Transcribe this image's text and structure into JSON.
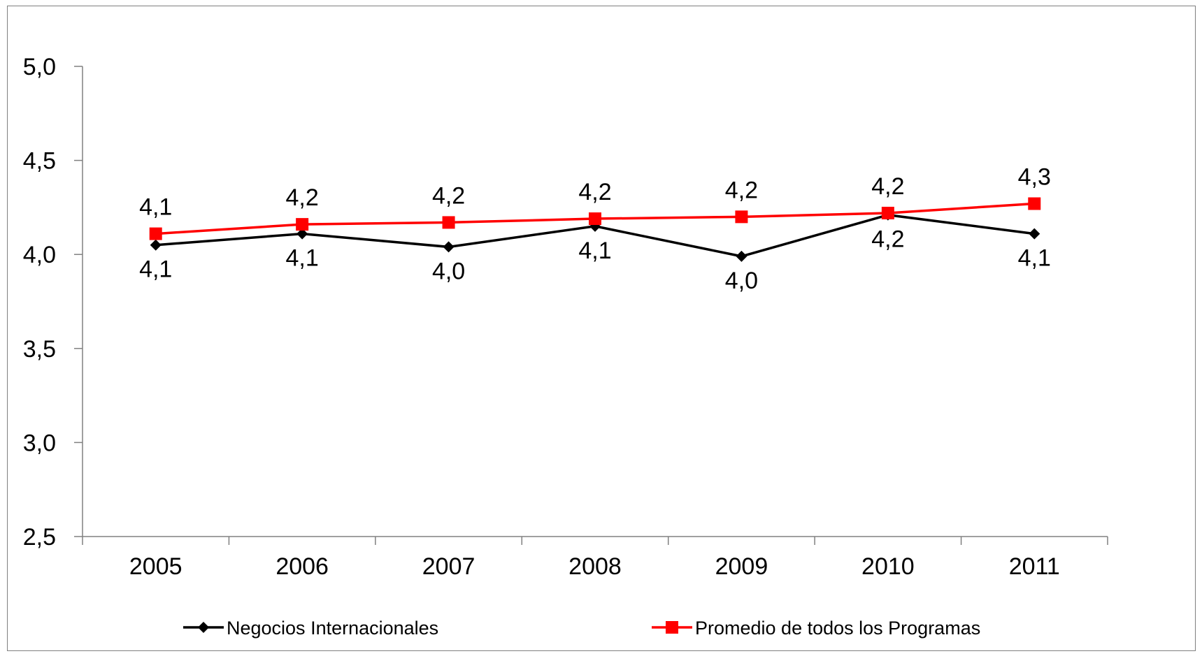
{
  "chart_data": {
    "type": "line",
    "x": [
      "2005",
      "2006",
      "2007",
      "2008",
      "2009",
      "2010",
      "2011"
    ],
    "ylim": [
      2.5,
      5.0
    ],
    "yticks": [
      2.5,
      3.0,
      3.5,
      4.0,
      4.5,
      5.0
    ],
    "ytick_labels": [
      "2,5",
      "3,0",
      "3,5",
      "4,0",
      "4,5",
      "5,0"
    ],
    "grid": false,
    "legend_position": "bottom",
    "series": [
      {
        "name": "Negocios Internacionales",
        "color": "#000000",
        "marker": "diamond",
        "values": [
          4.05,
          4.11,
          4.04,
          4.15,
          3.99,
          4.21,
          4.11
        ],
        "labels": [
          "4,1",
          "4,1",
          "4,0",
          "4,1",
          "4,0",
          "4,2",
          "4,1"
        ],
        "label_position": "below"
      },
      {
        "name": "Promedio de todos los Programas",
        "color": "#ff0000",
        "marker": "square",
        "values": [
          4.11,
          4.16,
          4.17,
          4.19,
          4.2,
          4.22,
          4.27
        ],
        "labels": [
          "4,1",
          "4,2",
          "4,2",
          "4,2",
          "4,2",
          "4,2",
          "4,3"
        ],
        "label_position": "above"
      }
    ]
  }
}
